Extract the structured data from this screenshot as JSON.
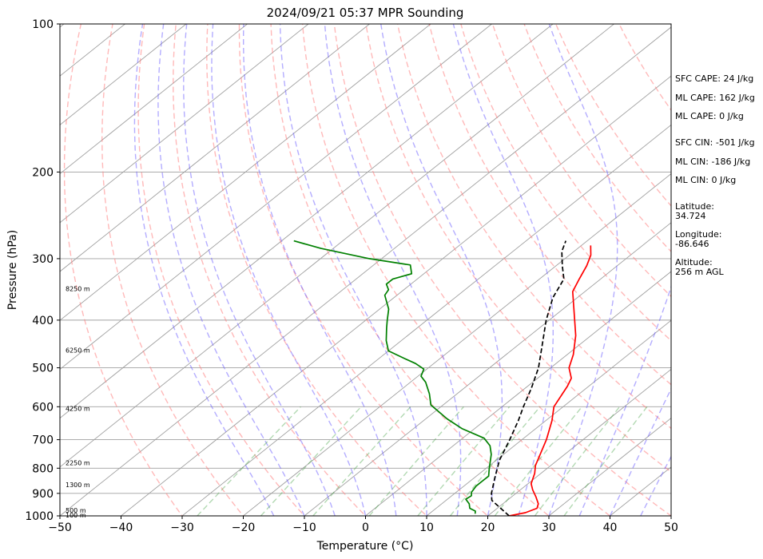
{
  "chart_data": {
    "type": "line",
    "subtype": "skew-t log-p",
    "title": "2024/09/21 05:37 MPR Sounding",
    "xlabel": "Temperature (°C)",
    "ylabel": "Pressure (hPa)",
    "xlim": [
      -50,
      50
    ],
    "ylim": [
      1000,
      100
    ],
    "y_scale": "log",
    "x_ticks": [
      "−50",
      "−40",
      "−30",
      "−20",
      "−10",
      "0",
      "10",
      "20",
      "30",
      "40",
      "50"
    ],
    "x_tick_values": [
      -50,
      -40,
      -30,
      -20,
      -10,
      0,
      10,
      20,
      30,
      40,
      50
    ],
    "y_ticks": [
      100,
      200,
      300,
      400,
      500,
      600,
      700,
      800,
      900,
      1000
    ],
    "y_tick_labels": [
      "100",
      "200",
      "300",
      "400",
      "500",
      "600",
      "700",
      "800",
      "900",
      "1000"
    ],
    "height_labels": [
      {
        "p": 997,
        "text": "100 m"
      },
      {
        "p": 975,
        "text": "500 m"
      },
      {
        "p": 865,
        "text": "1300 m"
      },
      {
        "p": 780,
        "text": "2250 m"
      },
      {
        "p": 605,
        "text": "4250 m"
      },
      {
        "p": 460,
        "text": "6250 m"
      },
      {
        "p": 345,
        "text": "8250 m"
      }
    ],
    "isotherms": [
      -150,
      -140,
      -130,
      -120,
      -110,
      -100,
      -90,
      -80,
      -70,
      -60,
      -50,
      -40,
      -30,
      -20,
      -10,
      0,
      10,
      20,
      30,
      40,
      50
    ],
    "dry_adiabats_theta_c": [
      -30,
      -20,
      -10,
      0,
      10,
      20,
      30,
      40,
      50,
      60,
      70,
      80,
      90,
      100,
      110,
      120,
      140,
      160
    ],
    "moist_adiabats_start_c": [
      -15,
      -10,
      -5,
      0,
      5,
      10,
      15,
      20,
      25,
      30,
      35,
      40,
      45
    ],
    "mixing_ratios_gkg": [
      0.4,
      1,
      2,
      4,
      7,
      10,
      16,
      24,
      32
    ],
    "series": [
      {
        "color": "#ff0000",
        "style": "solid",
        "points": [
          [
            23.5,
            1000
          ],
          [
            25.5,
            985
          ],
          [
            26.5,
            965
          ],
          [
            25.8,
            945
          ],
          [
            24,
            915
          ],
          [
            22,
            885
          ],
          [
            20.5,
            860
          ],
          [
            19,
            820
          ],
          [
            17.5,
            790
          ],
          [
            14,
            700
          ],
          [
            11,
            640
          ],
          [
            8.5,
            600
          ],
          [
            6.5,
            545
          ],
          [
            5.5,
            525
          ],
          [
            3,
            500
          ],
          [
            1,
            470
          ],
          [
            -2.5,
            430
          ],
          [
            -7,
            390
          ],
          [
            -12,
            350
          ],
          [
            -13.5,
            330
          ],
          [
            -15,
            310
          ],
          [
            -16.5,
            295
          ],
          [
            -18.5,
            282
          ]
        ]
      },
      {
        "color": "#008000",
        "style": "solid",
        "points": [
          [
            17.5,
            990
          ],
          [
            17,
            978
          ],
          [
            15.5,
            965
          ],
          [
            14.5,
            945
          ],
          [
            13,
            925
          ],
          [
            13.2,
            910
          ],
          [
            12.5,
            895
          ],
          [
            12,
            870
          ],
          [
            12,
            850
          ],
          [
            12,
            830
          ],
          [
            10.5,
            800
          ],
          [
            8,
            750
          ],
          [
            6,
            720
          ],
          [
            3.5,
            695
          ],
          [
            -2,
            665
          ],
          [
            -6.5,
            635
          ],
          [
            -12,
            595
          ],
          [
            -14.5,
            565
          ],
          [
            -17.5,
            535
          ],
          [
            -19.5,
            520
          ],
          [
            -20.5,
            503
          ],
          [
            -23,
            490
          ],
          [
            -26,
            478
          ],
          [
            -30,
            462
          ],
          [
            -32.5,
            440
          ],
          [
            -35,
            415
          ],
          [
            -36.5,
            400
          ],
          [
            -38.5,
            380
          ],
          [
            -42,
            356
          ],
          [
            -42.5,
            347
          ],
          [
            -44,
            338
          ],
          [
            -44,
            330
          ],
          [
            -42,
            322
          ],
          [
            -44,
            309
          ],
          [
            -52,
            300
          ],
          [
            -62,
            286
          ],
          [
            -68,
            276
          ]
        ]
      },
      {
        "color": "#000000",
        "style": "dashed",
        "points": [
          [
            23.5,
            1000
          ],
          [
            17.5,
            930
          ],
          [
            16,
            900
          ],
          [
            13.5,
            840
          ],
          [
            10.5,
            770
          ],
          [
            8,
            700
          ],
          [
            5.5,
            640
          ],
          [
            3.5,
            600
          ],
          [
            1,
            550
          ],
          [
            -2,
            500
          ],
          [
            -6,
            450
          ],
          [
            -10.5,
            400
          ],
          [
            -14,
            360
          ],
          [
            -16,
            330
          ],
          [
            -19,
            310
          ],
          [
            -22,
            290
          ],
          [
            -23.5,
            276
          ]
        ]
      }
    ]
  },
  "side_panel": {
    "sfc_cape": "SFC CAPE: 24 J/kg",
    "ml_cape_1": "ML CAPE: 162 J/kg",
    "ml_cape_2": "ML CAPE: 0 J/kg",
    "sfc_cin": "SFC CIN: -501 J/kg",
    "ml_cin_1": "ML CIN: -186 J/kg",
    "ml_cin_2": "ML CIN: 0 J/kg",
    "latitude_label": "Latitude:",
    "latitude_value": "34.724",
    "longitude_label": "Longitude:",
    "longitude_value": "-86.646",
    "altitude_label": "Altitude:",
    "altitude_value": "256 m AGL"
  },
  "colors": {
    "isotherm": "#a0a0a0",
    "dry_adiabat": "#ff8080",
    "moist_adiabat": "#6a5cff",
    "mixing_ratio": "#40a040",
    "temperature": "#ff0000",
    "dewpoint": "#008000",
    "parcel": "#000000"
  }
}
